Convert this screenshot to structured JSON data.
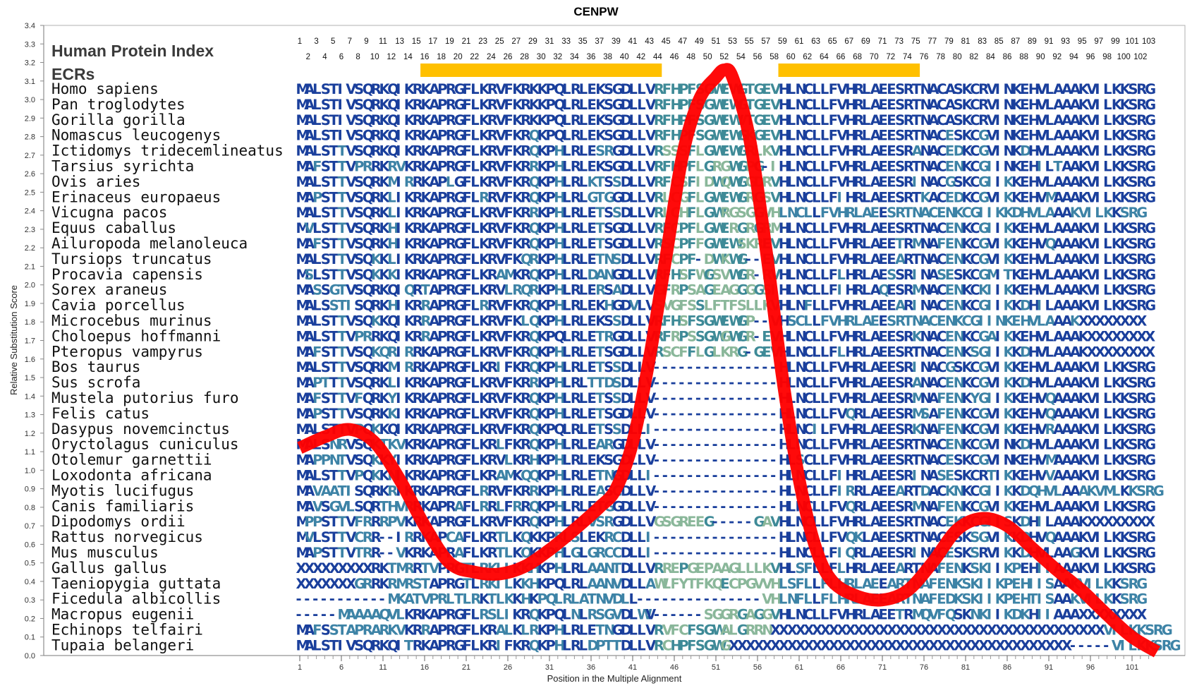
{
  "chart_data": {
    "type": "line",
    "title": "CENPW",
    "xlabel": "Position in the Multiple Alignment",
    "ylabel": "Relative Substitution Score",
    "ylim": [
      0.0,
      3.4
    ],
    "yticks": [
      "0.0",
      "0.1",
      "0.2",
      "0.3",
      "0.4",
      "0.5",
      "0.6",
      "0.7",
      "0.8",
      "0.9",
      "1.0",
      "1.1",
      "1.2",
      "1.3",
      "1.4",
      "1.5",
      "1.6",
      "1.7",
      "1.8",
      "1.9",
      "2.0",
      "2.1",
      "2.2",
      "2.3",
      "2.4",
      "2.5",
      "2.6",
      "2.7",
      "2.8",
      "2.9",
      "3.0",
      "3.1",
      "3.2",
      "3.3",
      "3.4"
    ],
    "xticks": [
      "1",
      "6",
      "11",
      "16",
      "21",
      "26",
      "31",
      "36",
      "41",
      "46",
      "51",
      "56",
      "61",
      "66",
      "71",
      "76",
      "81",
      "86",
      "91",
      "96",
      "101"
    ],
    "grid": false,
    "series": [
      {
        "color": "#ff0000",
        "x": [
          0,
          3,
          6,
          9,
          12,
          15,
          18,
          21,
          24,
          27,
          30,
          33,
          36,
          38,
          40,
          42,
          44,
          46,
          48,
          50,
          51,
          52,
          54,
          56,
          58,
          60,
          62,
          64,
          67,
          70,
          73,
          76,
          79,
          82,
          85,
          88,
          91,
          94,
          97,
          100,
          103
        ],
        "y": [
          1.12,
          1.18,
          1.22,
          1.15,
          0.95,
          0.7,
          0.5,
          0.45,
          0.44,
          0.48,
          0.57,
          0.68,
          0.8,
          0.9,
          1.15,
          1.6,
          2.15,
          2.7,
          3.0,
          3.12,
          3.16,
          3.12,
          2.8,
          2.2,
          1.5,
          0.95,
          0.58,
          0.4,
          0.32,
          0.3,
          0.35,
          0.5,
          0.68,
          0.74,
          0.7,
          0.58,
          0.46,
          0.35,
          0.22,
          0.1,
          0.02
        ]
      }
    ],
    "header": {
      "index_label": "Human Protein Index",
      "ecr_label": "ECRs",
      "positions_odd": [
        "1",
        "3",
        "5",
        "7",
        "9",
        "11",
        "13",
        "15",
        "17",
        "19",
        "21",
        "23",
        "25",
        "27",
        "29",
        "31",
        "33",
        "35",
        "37",
        "39",
        "41",
        "43",
        "45",
        "47",
        "49",
        "51",
        "53",
        "55",
        "57",
        "59",
        "61",
        "63",
        "65",
        "67",
        "69",
        "71",
        "73",
        "75",
        "77",
        "79",
        "81",
        "83",
        "85",
        "87",
        "89",
        "91",
        "93",
        "95",
        "97",
        "99",
        "101",
        "103"
      ],
      "positions_even": [
        "2",
        "4",
        "6",
        "8",
        "10",
        "12",
        "14",
        "16",
        "18",
        "20",
        "22",
        "24",
        "26",
        "28",
        "30",
        "32",
        "34",
        "36",
        "38",
        "40",
        "42",
        "44",
        "46",
        "48",
        "50",
        "52",
        "54",
        "56",
        "58",
        "60",
        "62",
        "64",
        "66",
        "68",
        "70",
        "72",
        "74",
        "76",
        "78",
        "80",
        "82",
        "84",
        "86",
        "88",
        "90",
        "92",
        "94",
        "96",
        "98",
        "100",
        "102"
      ],
      "ecr_bars": [
        {
          "from": 16,
          "to": 44
        },
        {
          "from": 59,
          "to": 75
        }
      ],
      "ecr_color": "#ffc000"
    },
    "alignment": [
      {
        "species": "Homo sapiens",
        "seq": "MALSTIVSQRKQIKRKAPRGFLKRVFKRKKPQLRLEKSGDLLVRFHPFSGWEWGTGEVHLNCLLFVHRLAEESRTNACASKCRVINKEHVLAAAKVILKKSRG"
      },
      {
        "species": "Pan troglodytes",
        "seq": "MALSTIVSQRKQIKRKAPRGFLKRVFKRKKPQLRLEKSGDLLVRFHPFSGWEWGTGEVHLNCLLFVHRLAEESRTNACASKCRVINKEHVLAAAKVILKKSRG"
      },
      {
        "species": "Gorilla gorilla",
        "seq": "MALSTIVSQRKQIKRKAPRGFLKRVFKRKKPQLRLEKSGDLLVRFHPFSGWEWVTGEVHLNCLLFVHRLAEESRTNACASKCRVINKEHVLAAAKVILKKSRG"
      },
      {
        "species": "Nomascus leucogenys",
        "seq": "MALSTIVSQRKQIKRKAPRGFLKRVFKRQKPQLRLEKSGDLLVRFHPFSGWEWGKGEVHLNCLLFVHRLAEESRTNACESKCGVINKEHVLAAAKVILKKSRG"
      },
      {
        "species": "Ictidomys tridecemlineatus",
        "seq": "MALSTTVSQRKQIKRKAPRGFLKRVFKRQKPHLRLESRGDLLVRSSSFLGWEWGRLKVHLNCLLFVHRLAEESRANACEDKCGVINKDHVLAAAKVILKKSRG"
      },
      {
        "species": "Tarsius syrichta",
        "seq": "MAFSTTVPRRKRVKRKAPRGFLKRVFKRRKPHLRLEKSGDLLVRFHPFLGRGWGPG-IHLNCLLFVHRLAEESRTNACENKCGIINKEHILTAAKVILKKSRG"
      },
      {
        "species": "Ovis aries",
        "seq": "MALSTTVSQRKMIRRKAPLGFLKRVFKRQKPHLRLKTSSDLLVRFCSFIDWQWGGDRVHLNCLLFVHRLAEESRINACGSKCGIIKKEHVLAAAKVILKKSRG"
      },
      {
        "species": "Erinaceus europaeus",
        "seq": "MAPSTTVSQRKLIKRKAPRGFLRRVFKRQKPHLRLGTGGDLLVRLCGFLGWEWGRGSVHLNCLLFIHRLAEESRTKACEDKCGVIKKEHVMAAAKVILKKSRG"
      },
      {
        "species": "Vicugna pacos",
        "seq": "MALSTTVSQRKLIKRKAPRGFLKRVFKRRKPHLRLETSSDLLVRICHFLGWRGSGGVHLNCLLFVHRLAEESRTNACENKCGIIKKDHVLAAAKVILKKSRG"
      },
      {
        "species": "Equus caballus",
        "seq": "MVLSTTVSQRKHIKRKAPRGFLKRVFKRQKPHLRLETSGDLLVRFCPFLGWERGRGRMHLNCLLFVHRLAEESRTNACENKCGIIKKEHVLAAAKVILKKSRG"
      },
      {
        "species": "Ailuropoda melanoleuca",
        "seq": "MAFSTTVSQRKHIKRKAPRGFLKRVFKRQKPHLRLETSGDLLVRSCPFFGWEWSKREVHLNCLLFVHRLAEETRMNAFENKCGVIKKEHVQAAAKVILKKSRG"
      },
      {
        "species": "Tursiops truncatus",
        "seq": "MALSTTVSQKKLIKRKAPRGFLKRVFKQRKPHLRLETNSDLLVRFCPF-DWKWG--EVHLNCLLFVHRLAEEARTNACENKCGVIKKEHVLAAAKVILKKSRG"
      },
      {
        "species": "Procavia capensis",
        "seq": "MSLSTTVSQKKKIKRKAPRGFLKRAMKRQKPHLRLDANGDLLVRFHSFWGSVWGR-RVHLNCLLFLHRLAESSRINASESKCGMITKEHVLAAAKVILKKSRG"
      },
      {
        "species": "Sorex araneus",
        "seq": "MASSGTVSQRKQIQRTAPRGFLKRVLRQRKPHLRLERSADLLVGFRPSAGEAGGGGSIHLNCLLFIHRLAQESRMNACENKCKIIKKEHVLAAAKVILKKSRG"
      },
      {
        "species": "Cavia porcellus",
        "seq": "MALSSTISQRKHIKRRAPRGFLRRVFKRQKPHLRLEKHGDVLVSVGFSSLFTFSLLKVHLNFLLFVHRLAEEARINACENKCGIIKKDHILAAAKVILKKSRG"
      },
      {
        "species": "Microcebus murinus",
        "seq": "MALSTTVSQKKQIKRRAPRGFLKRVFKLQKPHLRLEKSSDLLVRFHSFSGWEWGP--VHSCLLFVHRLAEESRTNACENKCGIINKEHVLAAAKXXXXXXXX"
      },
      {
        "species": "Choloepus hoffmanni",
        "seq": "MALSTTVPRRKQIKRRAPRGFLKRVFKRQKPQLRLETRGDLLVRFRPSSGWGWGR-EVHLNCLLFVHRLAEESRKNACENKCGAIKKEHVLAAAKXXXXXXXX"
      },
      {
        "species": "Pteropus vampyrus",
        "seq": "MAFSTTVSQKQRIRRKAPRGFLKRVFKRQKPHLRLETSGDLLVRSCFFLGLKRG-GEVHLNCLLFLHRLAEESRTNACENKSGIIKKDHVLAAAKXXXXXXXX"
      },
      {
        "species": "Bos taurus",
        "seq": "MALSTTVSQRKMIRRKAPRGFLKRIFKRQKPHLRLETSSDLLV---------------HLNCLLFVHRLAEESRINACGSKCGVIKKEHVLAAAKVILKKSRG"
      },
      {
        "species": "Sus scrofa",
        "seq": "MAPTTTVSQRKLIKRKAPRGFLKRVFKRRKPHLRLTTDSDLLV---------------HLNCLLFVHRLAEESRANACENKCGVIKKDHVLAAAKVILKKSRG"
      },
      {
        "species": "Mustela putorius furo",
        "seq": "MAFSTTVFQRKYIKRKAPRGFLKRVFKRQKPHLRLETSSDLLV---------------HLNCLLFVHRLAEESRMNAFENKYGIIKKEHVQAAAKVILKKSRG"
      },
      {
        "species": "Felis catus",
        "seq": "MAPSTTVSQRKKIKRKAPRGFLKRVFKRQKPHLRLETSGDLLV---------------HLNCLLFVQRLAEESRMSAFENKCGVIKKEHVQAAAKVILKKSRG"
      },
      {
        "species": "Dasypus novemcinctus",
        "seq": "MALSTTVPQKKQIKRKAPRGFLKRVFKRQKPQLRLETSSDLLI---------------HLNCILFVHRLAEESRKNAFENKCGVIKKEHVRAAAKVILKKSRG"
      },
      {
        "species": "Oryctolagus cuniculus",
        "seq": "MALSNRVSQKTKVKRKAPRGFLKRLFKRQKPHLRLEARGDLLV---------------HLNCLLFVHRLAEESRTNACENKCGVINKDHVLAAAKVILKKSRG"
      },
      {
        "species": "Otolemur garnettii",
        "seq": "MAPPNTVSQKKYIKRKAPRGFLKRVLKRHKPHLRLEKSGDLLV---------------HLSCLLFVHRLAEESRTNACESKCGVINKEHVMAAAKVILKKSRG"
      },
      {
        "species": "Loxodonta africana",
        "seq": "MALSTTVPQKKNIKRKAPRGFLKRAMKQQKPHLRLETNGDLLI---------------HLNCLLFIHRLAEESRINASESKCRTIKKEHVVAAAKVILKKSRG"
      },
      {
        "species": "Myotis lucifugus",
        "seq": "MAVAATISQRKRIKRKAPRGFLRRVFKRRKPHLRLEASCDLLV---------------HLNCLLFIRRLAEEARTDACKNKCGIIKKDQHVLAAAKVMLKKSRG"
      },
      {
        "species": "Canis familiaris",
        "seq": "MAVSGVLSQRTHVRRKAPRAFLRRLFRRQKPHLRLETGGDLLV---------------HLNCLLFVQRLAEESRMNAFENKCGVIKKEHVLAAAKVILKKSRG"
      },
      {
        "species": "Dipodomys ordii",
        "seq": "MPPSTTVFRRRPVKRKAPRGFLKRVFKRQKPHLRLVSRGDLLVGSGREEG-----GAVHLNCLLFVHRLAEESRTNACEKKCGIISKDHILAAAKXXXXXXXX"
      },
      {
        "species": "Rattus norvegicus",
        "seq": "MVLSTTVCRR--IRRKAPCAFLKRTLKQKKPRLSLEKRCDLLI---------------HLNCLLFVQKLAEESRTNACESKSGVIKKDHVQAAAKVILKKSRG"
      },
      {
        "species": "Mus musculus",
        "seq": "MAPSTTVTRR--VKRKAPRAFLKRTLKQKKPHLGLGRCCDLLI---------------HLNCLLFIQRLAEESRINACESKSRVIKKDHVLAAGKVILKKSRG"
      },
      {
        "species": "Gallus gallus",
        "seq": "XXXXXXXXXRKTMRRTVPRGTLRKIIKKHKPHLRLAANTDLLVRREPGEPAAGLLLKVHLSFLLFLHRLAEEARTNAFENKSKIIKPEHIIAAAKVILKKSRG"
      },
      {
        "species": "Taeniopygia guttata",
        "seq": "XXXXXXXGRRKRMRSTAPRGTLRKILKKHKPQLRLAANVDLLAWLFYTFKQECPGVVHLSFLLFLHRLAEEARTNAFENKSKIIKPEHIISAAKVILKKSRG"
      },
      {
        "species": "Ficedula albicollis",
        "seq": "-----------MKATVPRLTLRKTLKKHKPQLRLATNVDLL---------------VHLNFLLFLHRLAEEARTNAFEDKSKIIKPEHTISAAKVILKKSRG"
      },
      {
        "species": "Macropus eugenii",
        "seq": "-----MAAAAQVLKRKAPRGFLRSLIKRQKPQLNLRSGVDLWV------SGGRGAGGVHLNCLLFVHRLAEETRMQVFQSKNKIIKDKHIIAAAXXXXXXXX"
      },
      {
        "species": "Echinops telfairi",
        "seq": "MAFSSTAPRARKVKRRAPRGFLKRALKLRKPHLRLETNGDLLVRVFCFSGWALGRRNXXXXXXXXXXXXXXXXXXXXXXXXXXXXXXXXXXXXXXXXVILKKSRG"
      },
      {
        "species": "Tupaia belangeri",
        "seq": "MALSTIVSQRKQITRKAPRGFLKRIFKRQKPHLRLDPTTDLLVRCHPFSGWGXXXXXXXXXXXXXXXXXXXXXXXXXXXXXXXXXXXXXXXXX-----VILKKSRG"
      }
    ]
  }
}
